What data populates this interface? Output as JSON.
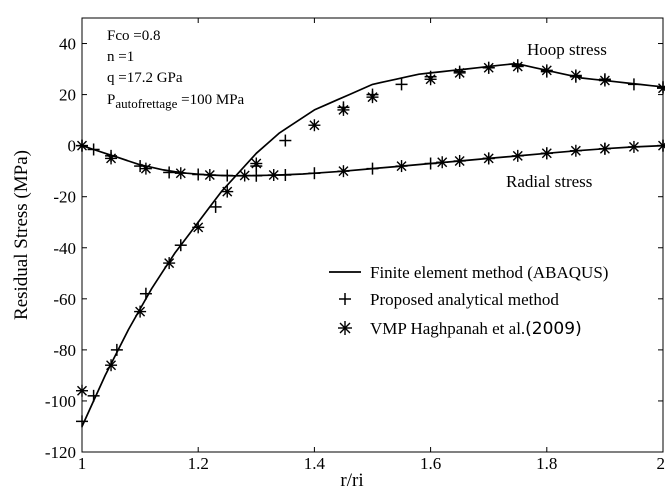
{
  "chart_data": {
    "type": "line",
    "xlabel": "r/ri",
    "ylabel": "Residual Stress (MPa)",
    "xlim": [
      1,
      2
    ],
    "ylim": [
      -120,
      50
    ],
    "x_ticks": [
      {
        "value": 1,
        "label": "1"
      },
      {
        "value": 1.2,
        "label": "1.2"
      },
      {
        "value": 1.4,
        "label": "1.4"
      },
      {
        "value": 1.6,
        "label": "1.6"
      },
      {
        "value": 1.8,
        "label": "1.8"
      },
      {
        "value": 2,
        "label": "2"
      }
    ],
    "y_ticks": [
      {
        "value": 40,
        "label": "40"
      },
      {
        "value": 20,
        "label": "20"
      },
      {
        "value": 0,
        "label": "0"
      },
      {
        "value": -20,
        "label": "-20"
      },
      {
        "value": -40,
        "label": "-40"
      },
      {
        "value": -60,
        "label": "-60"
      },
      {
        "value": -80,
        "label": "-80"
      },
      {
        "value": -100,
        "label": "-100"
      },
      {
        "value": -120,
        "label": "-120"
      }
    ],
    "grid": false,
    "params": {
      "line1": "Fco =0.8",
      "line2": "n =1",
      "line3": "q =17.2 GPa",
      "line4_main": "P",
      "line4_sub": "autofrettage",
      "line4_rest": " =100 MPa"
    },
    "annotations": {
      "hoop": "Hoop stress",
      "radial": "Radial stress"
    },
    "legend": {
      "position": "lower-right",
      "fem": "Finite element method (ABAQUS)",
      "analytical": "Proposed analytical method",
      "vmp_name": "VMP Haghpanah et al.",
      "vmp_year": "(2009)"
    },
    "curves": {
      "fem_hoop": {
        "x": [
          1.0,
          1.02,
          1.04,
          1.06,
          1.08,
          1.1,
          1.12,
          1.14,
          1.16,
          1.18,
          1.2,
          1.22,
          1.24,
          1.26,
          1.28,
          1.3,
          1.32,
          1.34,
          1.36,
          1.38,
          1.4,
          1.42,
          1.44,
          1.46,
          1.48,
          1.5,
          1.52,
          1.54,
          1.56,
          1.58,
          1.6,
          1.62,
          1.64,
          1.66,
          1.68,
          1.7,
          1.72,
          1.74,
          1.75,
          1.76,
          1.78,
          1.8,
          1.82,
          1.84,
          1.86,
          1.88,
          1.9,
          1.92,
          1.94,
          1.96,
          1.98,
          2.0
        ],
        "y": [
          -110,
          -100,
          -90,
          -81,
          -72,
          -64,
          -56,
          -49,
          -42,
          -36,
          -30,
          -24,
          -18,
          -13,
          -8,
          -3,
          1,
          5,
          8,
          11,
          14,
          16,
          18,
          20,
          22,
          24,
          25,
          26,
          27,
          28,
          28.5,
          29,
          29.5,
          30,
          30.5,
          31,
          31.5,
          32,
          32,
          31.5,
          30.5,
          29.5,
          28.5,
          27.5,
          26.5,
          26,
          25.5,
          25,
          24.5,
          24,
          23.5,
          23
        ]
      },
      "fem_radial": {
        "x": [
          1.0,
          1.02,
          1.04,
          1.06,
          1.08,
          1.1,
          1.12,
          1.14,
          1.16,
          1.18,
          1.2,
          1.22,
          1.24,
          1.26,
          1.28,
          1.3,
          1.32,
          1.34,
          1.36,
          1.38,
          1.4,
          1.45,
          1.5,
          1.55,
          1.6,
          1.65,
          1.7,
          1.75,
          1.8,
          1.85,
          1.9,
          1.95,
          2.0
        ],
        "y": [
          0,
          -1.5,
          -3,
          -4.5,
          -6,
          -7.5,
          -8.5,
          -9.5,
          -10.2,
          -10.8,
          -11.2,
          -11.5,
          -11.7,
          -11.8,
          -11.8,
          -11.7,
          -11.6,
          -11.5,
          -11.3,
          -11.1,
          -10.8,
          -10,
          -9,
          -8,
          -7,
          -6,
          -5,
          -4,
          -3,
          -2,
          -1.2,
          -0.5,
          0
        ]
      },
      "analytical_hoop": {
        "x": [
          1.0,
          1.02,
          1.06,
          1.11,
          1.17,
          1.23,
          1.3,
          1.35,
          1.45,
          1.5,
          1.55,
          1.6,
          1.65,
          1.7,
          1.75,
          1.8,
          1.85,
          1.9,
          1.95,
          2.0
        ],
        "y": [
          -108,
          -98,
          -80,
          -58,
          -39,
          -24,
          -8,
          2,
          15,
          20,
          24,
          27,
          29,
          30.5,
          31.5,
          29,
          27,
          26,
          24,
          23
        ]
      },
      "analytical_radial": {
        "x": [
          1.0,
          1.02,
          1.05,
          1.1,
          1.15,
          1.2,
          1.25,
          1.3,
          1.35,
          1.4,
          1.5,
          1.6,
          1.7,
          1.8,
          1.9,
          2.0
        ],
        "y": [
          0,
          -1.5,
          -4,
          -8,
          -10.5,
          -11.3,
          -11.7,
          -11.8,
          -11.5,
          -10.8,
          -9,
          -7,
          -5,
          -3,
          -1.2,
          0
        ]
      },
      "vmp_hoop": {
        "x": [
          1.0,
          1.05,
          1.1,
          1.15,
          1.2,
          1.25,
          1.3,
          1.4,
          1.45,
          1.5,
          1.6,
          1.65,
          1.7,
          1.75,
          1.8,
          1.85,
          1.9,
          2.0
        ],
        "y": [
          -96,
          -86,
          -65,
          -46,
          -32,
          -18,
          -7,
          8,
          14,
          19,
          26,
          28.5,
          30.5,
          31,
          29.5,
          27.5,
          25.5,
          22.5
        ]
      },
      "vmp_radial": {
        "x": [
          1.0,
          1.05,
          1.11,
          1.17,
          1.22,
          1.28,
          1.33,
          1.45,
          1.55,
          1.62,
          1.65,
          1.7,
          1.75,
          1.8,
          1.85,
          1.9,
          1.95,
          2.0
        ],
        "y": [
          0,
          -5,
          -9,
          -10.8,
          -11.5,
          -11.7,
          -11.5,
          -10,
          -8,
          -6.5,
          -6,
          -5,
          -4,
          -3,
          -2,
          -1.2,
          -0.5,
          0
        ]
      }
    }
  }
}
